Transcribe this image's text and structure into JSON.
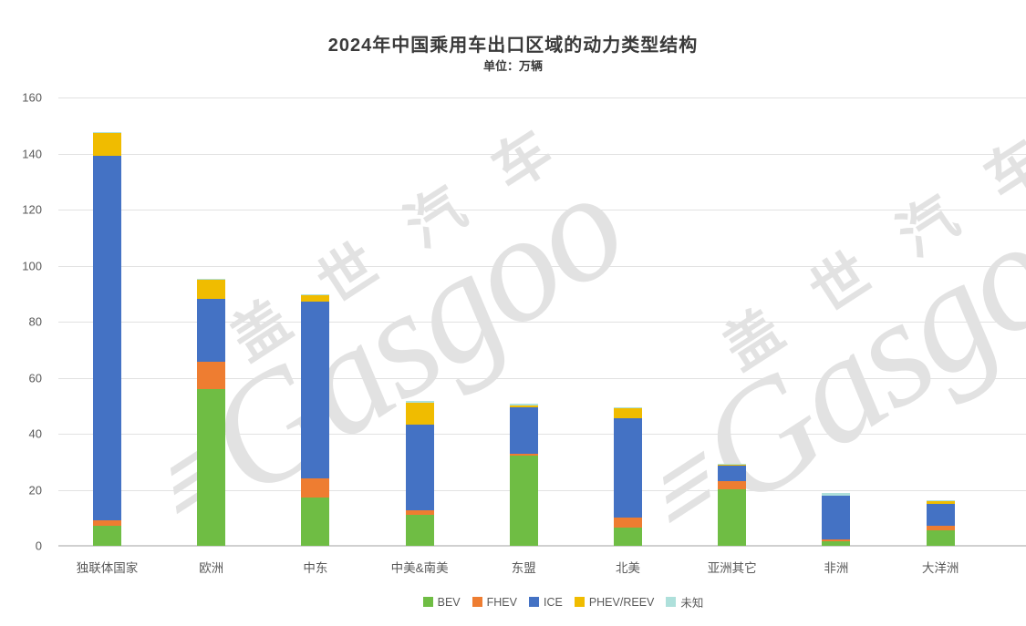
{
  "header": {
    "title": "2024年中国乘用车出口区域的动力类型结构",
    "subtitle": "单位：万辆"
  },
  "watermark": {
    "cn": "盖世汽车",
    "en": "Gasgoo"
  },
  "chart_data": {
    "type": "bar",
    "stacked": true,
    "title": "2024年中国乘用车出口区域的动力类型结构",
    "unit": "万辆",
    "categories": [
      "独联体国家",
      "欧洲",
      "中东",
      "中美&南美",
      "东盟",
      "北美",
      "亚洲其它",
      "非洲",
      "大洋洲"
    ],
    "series": [
      {
        "name": "BEV",
        "color": "#6fbd44",
        "values": [
          7.2,
          56.1,
          17.3,
          11.1,
          32.1,
          6.5,
          20.1,
          1.6,
          5.6
        ]
      },
      {
        "name": "FHEV",
        "color": "#ee7d31",
        "values": [
          1.9,
          9.6,
          6.7,
          1.5,
          0.9,
          3.5,
          3.0,
          0.8,
          1.7
        ]
      },
      {
        "name": "ICE",
        "color": "#4472c4",
        "values": [
          130.0,
          22.3,
          63.1,
          30.5,
          16.3,
          35.6,
          5.6,
          15.6,
          7.7
        ]
      },
      {
        "name": "PHEV/REEV",
        "color": "#f0bc00",
        "values": [
          8.2,
          6.9,
          2.4,
          8.1,
          0.8,
          3.5,
          0.4,
          0.0,
          1.1
        ]
      },
      {
        "name": "未知",
        "color": "#aee0db",
        "values": [
          0.5,
          0.5,
          0.4,
          0.4,
          0.8,
          0.3,
          0.3,
          0.9,
          0.2
        ]
      }
    ],
    "totals": [
      147.8,
      95.4,
      89.9,
      51.6,
      50.9,
      49.4,
      29.4,
      18.9,
      16.3
    ],
    "ylim": [
      0,
      160
    ],
    "yticks": [
      0,
      20,
      40,
      60,
      80,
      100,
      120,
      140,
      160
    ],
    "grid": true,
    "legend_position": "bottom",
    "legend_items": [
      "BEV",
      "FHEV",
      "ICE",
      "PHEV/REEV",
      "未知"
    ]
  }
}
